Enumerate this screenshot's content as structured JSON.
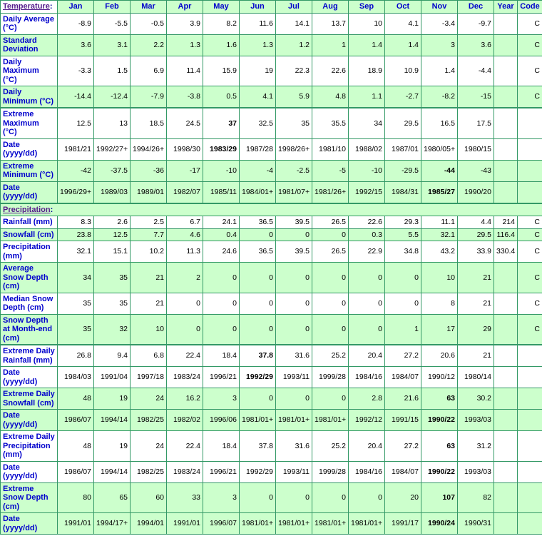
{
  "page": {
    "background": "#FFFFFF"
  },
  "colors": {
    "border_green": "#339966",
    "row_shade_green": "#CCFFCC",
    "label_blue": "#0000CC",
    "section_link_purple": "#551A8B",
    "data_text": "#000000"
  },
  "table": {
    "header": {
      "link_text": "Temperature",
      "suffix": ":"
    },
    "column_headers": [
      "Jan",
      "Feb",
      "Mar",
      "Apr",
      "May",
      "Jun",
      "Jul",
      "Aug",
      "Sep",
      "Oct",
      "Nov",
      "Dec",
      "Year",
      "Code"
    ],
    "rows": [
      {
        "type": "data",
        "label": "Daily Average (°C)",
        "shade": false,
        "thick": false,
        "values": [
          "-8.9",
          "-5.5",
          "-0.5",
          "3.9",
          "8.2",
          "11.6",
          "14.1",
          "13.7",
          "10",
          "4.1",
          "-3.4",
          "-9.7"
        ],
        "year": "",
        "code": "C",
        "bold": []
      },
      {
        "type": "data",
        "label": "Standard Deviation",
        "shade": true,
        "thick": false,
        "values": [
          "3.6",
          "3.1",
          "2.2",
          "1.3",
          "1.6",
          "1.3",
          "1.2",
          "1",
          "1.4",
          "1.4",
          "3",
          "3.6"
        ],
        "year": "",
        "code": "C",
        "bold": []
      },
      {
        "type": "data",
        "label": "Daily Maximum (°C)",
        "shade": false,
        "thick": false,
        "values": [
          "-3.3",
          "1.5",
          "6.9",
          "11.4",
          "15.9",
          "19",
          "22.3",
          "22.6",
          "18.9",
          "10.9",
          "1.4",
          "-4.4"
        ],
        "year": "",
        "code": "C",
        "bold": []
      },
      {
        "type": "data",
        "label": "Daily Minimum (°C)",
        "shade": true,
        "thick": false,
        "values": [
          "-14.4",
          "-12.4",
          "-7.9",
          "-3.8",
          "0.5",
          "4.1",
          "5.9",
          "4.8",
          "1.1",
          "-2.7",
          "-8.2",
          "-15"
        ],
        "year": "",
        "code": "C",
        "bold": []
      },
      {
        "type": "data",
        "label": "Extreme Maximum (°C)",
        "shade": false,
        "thick": true,
        "values": [
          "12.5",
          "13",
          "18.5",
          "24.5",
          "37",
          "32.5",
          "35",
          "35.5",
          "34",
          "29.5",
          "16.5",
          "17.5"
        ],
        "year": "",
        "code": "",
        "bold": [
          4
        ]
      },
      {
        "type": "data",
        "label": "Date (yyyy/dd)",
        "shade": false,
        "thick": false,
        "values": [
          "1981/21",
          "1992/27+",
          "1994/26+",
          "1998/30",
          "1983/29",
          "1987/28",
          "1998/26+",
          "1981/10",
          "1988/02",
          "1987/01",
          "1980/05+",
          "1980/15"
        ],
        "year": "",
        "code": "",
        "bold": [
          4
        ]
      },
      {
        "type": "data",
        "label": "Extreme Minimum (°C)",
        "shade": true,
        "thick": false,
        "values": [
          "-42",
          "-37.5",
          "-36",
          "-17",
          "-10",
          "-4",
          "-2.5",
          "-5",
          "-10",
          "-29.5",
          "-44",
          "-43"
        ],
        "year": "",
        "code": "",
        "bold": [
          10
        ]
      },
      {
        "type": "data",
        "label": "Date (yyyy/dd)",
        "shade": true,
        "thick": false,
        "values": [
          "1996/29+",
          "1989/03",
          "1989/01",
          "1982/07",
          "1985/11",
          "1984/01+",
          "1981/07+",
          "1981/26+",
          "1992/15",
          "1984/31",
          "1985/27",
          "1990/20"
        ],
        "year": "",
        "code": "",
        "bold": [
          10
        ]
      },
      {
        "type": "section",
        "link_text": "Precipitation",
        "suffix": ":",
        "shade": true,
        "thick": true
      },
      {
        "type": "data",
        "label": "Rainfall (mm)",
        "shade": false,
        "thick": false,
        "values": [
          "8.3",
          "2.6",
          "2.5",
          "6.7",
          "24.1",
          "36.5",
          "39.5",
          "26.5",
          "22.6",
          "29.3",
          "11.1",
          "4.4"
        ],
        "year": "214",
        "code": "C",
        "bold": []
      },
      {
        "type": "data",
        "label": "Snowfall (cm)",
        "shade": true,
        "thick": false,
        "values": [
          "23.8",
          "12.5",
          "7.7",
          "4.6",
          "0.4",
          "0",
          "0",
          "0",
          "0.3",
          "5.5",
          "32.1",
          "29.5"
        ],
        "year": "116.4",
        "code": "C",
        "bold": []
      },
      {
        "type": "data",
        "label": "Precipitation (mm)",
        "shade": false,
        "thick": false,
        "values": [
          "32.1",
          "15.1",
          "10.2",
          "11.3",
          "24.6",
          "36.5",
          "39.5",
          "26.5",
          "22.9",
          "34.8",
          "43.2",
          "33.9"
        ],
        "year": "330.4",
        "code": "C",
        "bold": []
      },
      {
        "type": "data",
        "label": "Average Snow Depth (cm)",
        "shade": true,
        "thick": false,
        "values": [
          "34",
          "35",
          "21",
          "2",
          "0",
          "0",
          "0",
          "0",
          "0",
          "0",
          "10",
          "21"
        ],
        "year": "",
        "code": "C",
        "bold": []
      },
      {
        "type": "data",
        "label": "Median Snow Depth (cm)",
        "shade": false,
        "thick": false,
        "values": [
          "35",
          "35",
          "21",
          "0",
          "0",
          "0",
          "0",
          "0",
          "0",
          "0",
          "8",
          "21"
        ],
        "year": "",
        "code": "C",
        "bold": []
      },
      {
        "type": "data",
        "label": "Snow Depth at Month-end (cm)",
        "shade": true,
        "thick": false,
        "values": [
          "35",
          "32",
          "10",
          "0",
          "0",
          "0",
          "0",
          "0",
          "0",
          "1",
          "17",
          "29"
        ],
        "year": "",
        "code": "C",
        "bold": []
      },
      {
        "type": "data",
        "label": "Extreme Daily Rainfall (mm)",
        "shade": false,
        "thick": true,
        "values": [
          "26.8",
          "9.4",
          "6.8",
          "22.4",
          "18.4",
          "37.8",
          "31.6",
          "25.2",
          "20.4",
          "27.2",
          "20.6",
          "21"
        ],
        "year": "",
        "code": "",
        "bold": [
          5
        ]
      },
      {
        "type": "data",
        "label": "Date (yyyy/dd)",
        "shade": false,
        "thick": false,
        "values": [
          "1984/03",
          "1991/04",
          "1997/18",
          "1983/24",
          "1996/21",
          "1992/29",
          "1993/11",
          "1999/28",
          "1984/16",
          "1984/07",
          "1990/12",
          "1980/14"
        ],
        "year": "",
        "code": "",
        "bold": [
          5
        ]
      },
      {
        "type": "data",
        "label": "Extreme Daily Snowfall (cm)",
        "shade": true,
        "thick": false,
        "values": [
          "48",
          "19",
          "24",
          "16.2",
          "3",
          "0",
          "0",
          "0",
          "2.8",
          "21.6",
          "63",
          "30.2"
        ],
        "year": "",
        "code": "",
        "bold": [
          10
        ]
      },
      {
        "type": "data",
        "label": "Date (yyyy/dd)",
        "shade": true,
        "thick": false,
        "values": [
          "1986/07",
          "1994/14",
          "1982/25",
          "1982/02",
          "1996/06",
          "1981/01+",
          "1981/01+",
          "1981/01+",
          "1992/12",
          "1991/15",
          "1990/22",
          "1993/03"
        ],
        "year": "",
        "code": "",
        "bold": [
          10
        ]
      },
      {
        "type": "data",
        "label": "Extreme Daily Precipitation (mm)",
        "shade": false,
        "thick": false,
        "values": [
          "48",
          "19",
          "24",
          "22.4",
          "18.4",
          "37.8",
          "31.6",
          "25.2",
          "20.4",
          "27.2",
          "63",
          "31.2"
        ],
        "year": "",
        "code": "",
        "bold": [
          10
        ]
      },
      {
        "type": "data",
        "label": "Date (yyyy/dd)",
        "shade": false,
        "thick": false,
        "values": [
          "1986/07",
          "1994/14",
          "1982/25",
          "1983/24",
          "1996/21",
          "1992/29",
          "1993/11",
          "1999/28",
          "1984/16",
          "1984/07",
          "1990/22",
          "1993/03"
        ],
        "year": "",
        "code": "",
        "bold": [
          10
        ]
      },
      {
        "type": "data",
        "label": "Extreme Snow Depth (cm)",
        "shade": true,
        "thick": false,
        "values": [
          "80",
          "65",
          "60",
          "33",
          "3",
          "0",
          "0",
          "0",
          "0",
          "20",
          "107",
          "82"
        ],
        "year": "",
        "code": "",
        "bold": [
          10
        ]
      },
      {
        "type": "data",
        "label": "Date (yyyy/dd)",
        "shade": true,
        "thick": false,
        "values": [
          "1991/01",
          "1994/17+",
          "1994/01",
          "1991/01",
          "1996/07",
          "1981/01+",
          "1981/01+",
          "1981/01+",
          "1981/01+",
          "1991/17",
          "1990/24",
          "1990/31"
        ],
        "year": "",
        "code": "",
        "bold": [
          10
        ]
      }
    ]
  }
}
